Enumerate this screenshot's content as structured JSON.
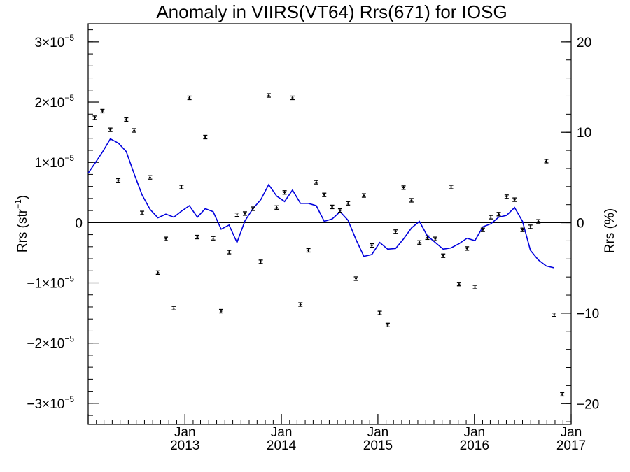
{
  "chart_data": {
    "type": "scatter",
    "title": "Anomaly in VIIRS(VT64) Rrs(671) for IOSG",
    "ylabel_left_main": "Rrs (str",
    "ylabel_left_sup": "−1",
    "ylabel_left_close": ")",
    "ylabel_right": "Rrs (%)",
    "x_range": [
      "2012-01-01",
      "2017-01-01"
    ],
    "ylim_left": [
      -3.35e-05,
      3.3e-05
    ],
    "ylim_right": [
      -22.3,
      22.0
    ],
    "grid": false,
    "legend": "none",
    "colors": {
      "line": "#0000dd",
      "points": "#000000",
      "zero_line": "#000000"
    },
    "left_ticks": [
      {
        "value": -3e-05,
        "mant": "−3×10",
        "exp": "−5"
      },
      {
        "value": -2e-05,
        "mant": "−2×10",
        "exp": "−5"
      },
      {
        "value": -1e-05,
        "mant": "−1×10",
        "exp": "−5"
      },
      {
        "value": 0,
        "mant": "0",
        "exp": ""
      },
      {
        "value": 1e-05,
        "mant": "1×10",
        "exp": "−5"
      },
      {
        "value": 2e-05,
        "mant": "2×10",
        "exp": "−5"
      },
      {
        "value": 3e-05,
        "mant": "3×10",
        "exp": "−5"
      }
    ],
    "right_ticks": [
      {
        "value": -20,
        "label": "−20"
      },
      {
        "value": -10,
        "label": "−10"
      },
      {
        "value": 0,
        "label": "0"
      },
      {
        "value": 10,
        "label": "10"
      },
      {
        "value": 20,
        "label": "20"
      }
    ],
    "x_ticks": [
      {
        "date": "2013-01-01",
        "month": "Jan",
        "year": "2013"
      },
      {
        "date": "2014-01-01",
        "month": "Jan",
        "year": "2014"
      },
      {
        "date": "2015-01-01",
        "month": "Jan",
        "year": "2015"
      },
      {
        "date": "2016-01-01",
        "month": "Jan",
        "year": "2016"
      },
      {
        "date": "2017-01-01",
        "month": "Jan",
        "year": "2017"
      }
    ],
    "point_series": {
      "name": "",
      "points": [
        {
          "x": "2012-01-26",
          "y": 1.74e-05
        },
        {
          "x": "2012-02-24",
          "y": 1.85e-05
        },
        {
          "x": "2012-03-25",
          "y": 1.54e-05
        },
        {
          "x": "2012-04-24",
          "y": 7e-06
        },
        {
          "x": "2012-05-24",
          "y": 1.71e-05
        },
        {
          "x": "2012-06-23",
          "y": 1.53e-05
        },
        {
          "x": "2012-07-23",
          "y": 1.6e-06
        },
        {
          "x": "2012-08-22",
          "y": 7.5e-06
        },
        {
          "x": "2012-09-21",
          "y": -8.3e-06
        },
        {
          "x": "2012-10-21",
          "y": -2.7e-06
        },
        {
          "x": "2012-11-20",
          "y": -1.42e-05
        },
        {
          "x": "2012-12-19",
          "y": 5.9e-06
        },
        {
          "x": "2013-01-18",
          "y": 2.07e-05
        },
        {
          "x": "2013-02-17",
          "y": -2.4e-06
        },
        {
          "x": "2013-03-19",
          "y": 1.42e-05
        },
        {
          "x": "2013-04-18",
          "y": -2.6e-06
        },
        {
          "x": "2013-05-18",
          "y": -1.47e-05
        },
        {
          "x": "2013-06-17",
          "y": -4.9e-06
        },
        {
          "x": "2013-07-17",
          "y": 1.3e-06
        },
        {
          "x": "2013-08-16",
          "y": 1.5e-06
        },
        {
          "x": "2013-09-15",
          "y": 2.3e-06
        },
        {
          "x": "2013-10-15",
          "y": -6.5e-06
        },
        {
          "x": "2013-11-14",
          "y": 2.11e-05
        },
        {
          "x": "2013-12-14",
          "y": 2.5e-06
        },
        {
          "x": "2014-01-13",
          "y": 5e-06
        },
        {
          "x": "2014-02-12",
          "y": 2.07e-05
        },
        {
          "x": "2014-03-14",
          "y": -1.36e-05
        },
        {
          "x": "2014-04-13",
          "y": -4.6e-06
        },
        {
          "x": "2014-05-13",
          "y": 6.7e-06
        },
        {
          "x": "2014-06-12",
          "y": 4.6e-06
        },
        {
          "x": "2014-07-12",
          "y": 2.6e-06
        },
        {
          "x": "2014-08-11",
          "y": 2e-06
        },
        {
          "x": "2014-09-10",
          "y": 3.2e-06
        },
        {
          "x": "2014-10-10",
          "y": -9.3e-06
        },
        {
          "x": "2014-11-09",
          "y": 4.5e-06
        },
        {
          "x": "2014-12-09",
          "y": -3.8e-06
        },
        {
          "x": "2015-01-08",
          "y": -1.5e-05
        },
        {
          "x": "2015-02-07",
          "y": -1.7e-05
        },
        {
          "x": "2015-03-09",
          "y": -1.5e-06
        },
        {
          "x": "2015-04-08",
          "y": 5.8e-06
        },
        {
          "x": "2015-05-08",
          "y": 3.7e-06
        },
        {
          "x": "2015-06-07",
          "y": -3.3e-06
        },
        {
          "x": "2015-07-07",
          "y": -2.5e-06
        },
        {
          "x": "2015-08-06",
          "y": -2.7e-06
        },
        {
          "x": "2015-09-05",
          "y": -5.5e-06
        },
        {
          "x": "2015-10-05",
          "y": 5.9e-06
        },
        {
          "x": "2015-11-04",
          "y": -1.02e-05
        },
        {
          "x": "2015-12-04",
          "y": -4.3e-06
        },
        {
          "x": "2016-01-03",
          "y": -1.07e-05
        },
        {
          "x": "2016-02-02",
          "y": -1.2e-06
        },
        {
          "x": "2016-03-03",
          "y": 9e-07
        },
        {
          "x": "2016-04-02",
          "y": 1.4e-06
        },
        {
          "x": "2016-05-02",
          "y": 4.3e-06
        },
        {
          "x": "2016-06-01",
          "y": 3.8e-06
        },
        {
          "x": "2016-07-01",
          "y": -1.2e-06
        },
        {
          "x": "2016-07-31",
          "y": -7e-07
        },
        {
          "x": "2016-08-30",
          "y": 2e-07
        },
        {
          "x": "2016-09-29",
          "y": 1.02e-05
        },
        {
          "x": "2016-10-29",
          "y": -1.53e-05
        },
        {
          "x": "2016-11-28",
          "y": -2.85e-05
        }
      ]
    },
    "line_series": {
      "name": "",
      "points": [
        {
          "x": "2012-01-01",
          "y": 8.2e-06
        },
        {
          "x": "2012-01-26",
          "y": 9.8e-06
        },
        {
          "x": "2012-02-24",
          "y": 1.17e-05
        },
        {
          "x": "2012-03-25",
          "y": 1.39e-05
        },
        {
          "x": "2012-04-24",
          "y": 1.32e-05
        },
        {
          "x": "2012-05-24",
          "y": 1.18e-05
        },
        {
          "x": "2012-06-23",
          "y": 8.1e-06
        },
        {
          "x": "2012-07-23",
          "y": 4.6e-06
        },
        {
          "x": "2012-08-22",
          "y": 2.2e-06
        },
        {
          "x": "2012-09-21",
          "y": 8e-07
        },
        {
          "x": "2012-10-21",
          "y": 1.4e-06
        },
        {
          "x": "2012-11-20",
          "y": 9e-07
        },
        {
          "x": "2012-12-19",
          "y": 1.9e-06
        },
        {
          "x": "2013-01-18",
          "y": 2.8e-06
        },
        {
          "x": "2013-02-17",
          "y": 9e-07
        },
        {
          "x": "2013-03-19",
          "y": 2.3e-06
        },
        {
          "x": "2013-04-18",
          "y": 1.8e-06
        },
        {
          "x": "2013-05-18",
          "y": -1.1e-06
        },
        {
          "x": "2013-06-17",
          "y": -4e-07
        },
        {
          "x": "2013-07-17",
          "y": -3.3e-06
        },
        {
          "x": "2013-08-16",
          "y": 3e-07
        },
        {
          "x": "2013-09-15",
          "y": 2.3e-06
        },
        {
          "x": "2013-10-15",
          "y": 3.8e-06
        },
        {
          "x": "2013-11-14",
          "y": 6.3e-06
        },
        {
          "x": "2013-12-14",
          "y": 4.4e-06
        },
        {
          "x": "2014-01-13",
          "y": 3.5e-06
        },
        {
          "x": "2014-02-12",
          "y": 5.4e-06
        },
        {
          "x": "2014-03-14",
          "y": 3.2e-06
        },
        {
          "x": "2014-04-13",
          "y": 3.2e-06
        },
        {
          "x": "2014-05-13",
          "y": 2.8e-06
        },
        {
          "x": "2014-06-12",
          "y": 2e-07
        },
        {
          "x": "2014-07-12",
          "y": 6e-07
        },
        {
          "x": "2014-08-11",
          "y": 1.8e-06
        },
        {
          "x": "2014-09-10",
          "y": 4e-07
        },
        {
          "x": "2014-10-10",
          "y": -2.8e-06
        },
        {
          "x": "2014-11-09",
          "y": -5.6e-06
        },
        {
          "x": "2014-12-09",
          "y": -5.3e-06
        },
        {
          "x": "2015-01-08",
          "y": -3.3e-06
        },
        {
          "x": "2015-02-07",
          "y": -4.4e-06
        },
        {
          "x": "2015-03-09",
          "y": -4.3e-06
        },
        {
          "x": "2015-04-08",
          "y": -2.7e-06
        },
        {
          "x": "2015-05-08",
          "y": -9e-07
        },
        {
          "x": "2015-06-07",
          "y": 2e-07
        },
        {
          "x": "2015-07-07",
          "y": -2.2e-06
        },
        {
          "x": "2015-08-06",
          "y": -3.3e-06
        },
        {
          "x": "2015-09-05",
          "y": -4.4e-06
        },
        {
          "x": "2015-10-05",
          "y": -4.2e-06
        },
        {
          "x": "2015-11-04",
          "y": -3.5e-06
        },
        {
          "x": "2015-12-04",
          "y": -2.6e-06
        },
        {
          "x": "2016-01-03",
          "y": -3e-06
        },
        {
          "x": "2016-02-02",
          "y": -7e-07
        },
        {
          "x": "2016-03-03",
          "y": -2e-07
        },
        {
          "x": "2016-04-02",
          "y": 9e-07
        },
        {
          "x": "2016-05-02",
          "y": 1.2e-06
        },
        {
          "x": "2016-06-01",
          "y": 2.5e-06
        },
        {
          "x": "2016-07-01",
          "y": 2e-07
        },
        {
          "x": "2016-07-31",
          "y": -4.6e-06
        },
        {
          "x": "2016-08-30",
          "y": -6.2e-06
        },
        {
          "x": "2016-09-29",
          "y": -7.2e-06
        },
        {
          "x": "2016-10-29",
          "y": -7.5e-06
        }
      ]
    }
  }
}
